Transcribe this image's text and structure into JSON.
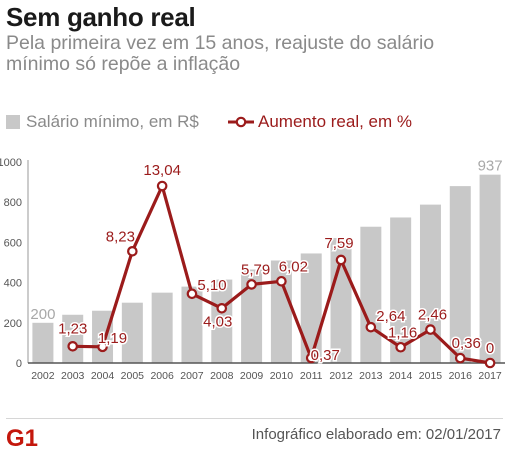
{
  "header": {
    "title": "Sem ganho real",
    "subtitle": "Pela primeira vez em 15 anos,  reajuste do salário mínimo só repõe a inflação"
  },
  "legend": {
    "bar_label": "Salário mínimo, em R$",
    "line_label": "Aumento real, em %"
  },
  "footer": {
    "logo_text": "G1",
    "credit": "Infográfico elaborado em:  02/01/2017"
  },
  "colors": {
    "bar": "#c8c8c8",
    "line": "#9b1b1b",
    "text": "#555555",
    "logo": "#c4170c"
  },
  "chart_data": {
    "type": "bar",
    "title": "Sem ganho real",
    "subtitle": "Pela primeira vez em 15 anos,  reajuste do salário mínimo só repõe a inflação",
    "categories": [
      "2002",
      "2003",
      "2004",
      "2005",
      "2006",
      "2007",
      "2008",
      "2009",
      "2010",
      "2011",
      "2012",
      "2013",
      "2014",
      "2015",
      "2016",
      "2017"
    ],
    "ylim": [
      0,
      1000
    ],
    "yticks": [
      0,
      200,
      400,
      600,
      800,
      1000
    ],
    "grid": false,
    "legend_position": "top",
    "series": [
      {
        "name": "Salário mínimo, em R$",
        "type": "bar",
        "values": [
          200,
          240,
          260,
          300,
          350,
          380,
          415,
          465,
          510,
          545,
          622,
          678,
          724,
          788,
          880,
          937
        ],
        "labels": [
          "200",
          "",
          "",
          "",
          "",
          "",
          "",
          "",
          "",
          "",
          "",
          "",
          "",
          "",
          "",
          "937"
        ]
      },
      {
        "name": "Aumento real, em %",
        "type": "line",
        "values": [
          null,
          1.23,
          1.19,
          8.23,
          13.04,
          5.1,
          4.03,
          5.79,
          6.02,
          0.37,
          7.59,
          2.64,
          1.16,
          2.46,
          0.36,
          0
        ],
        "labels": [
          "",
          "1,23",
          "1,19",
          "8,23",
          "13,04",
          "5,10",
          "4,03",
          "5,79",
          "6,02",
          "0,37",
          "7,59",
          "2,64",
          "1,16",
          "2,46",
          "0,36",
          "0"
        ]
      }
    ]
  }
}
